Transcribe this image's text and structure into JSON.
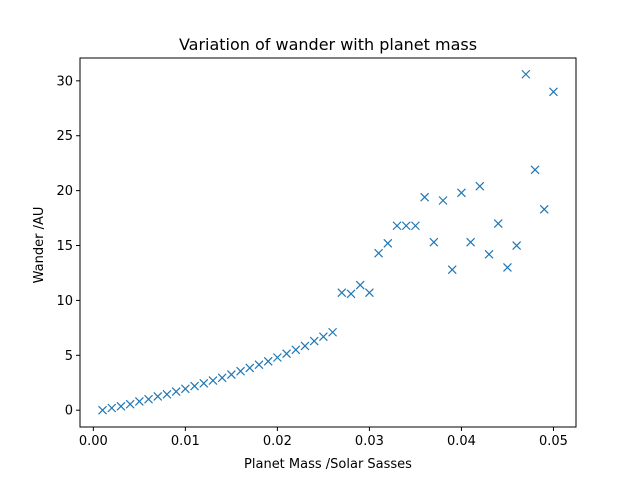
{
  "chart_data": {
    "type": "scatter",
    "title": "Variation of wander with planet mass",
    "xlabel": "Planet Mass /Solar Sasses",
    "ylabel": "Wander /AU",
    "xlim": [
      -0.00145,
      0.05245
    ],
    "ylim": [
      -1.53,
      32.08
    ],
    "xticks": [
      0.0,
      0.01,
      0.02,
      0.03,
      0.04,
      0.05
    ],
    "xtick_labels": [
      "0.00",
      "0.01",
      "0.02",
      "0.03",
      "0.04",
      "0.05"
    ],
    "yticks": [
      0,
      5,
      10,
      15,
      20,
      25,
      30
    ],
    "ytick_labels": [
      "0",
      "5",
      "10",
      "15",
      "20",
      "25",
      "30"
    ],
    "grid": false,
    "marker": "x",
    "color": "#1f77b4",
    "series": [
      {
        "x": [
          0.001,
          0.002,
          0.003,
          0.004,
          0.005,
          0.006,
          0.007,
          0.008,
          0.009,
          0.01,
          0.011,
          0.012,
          0.013,
          0.014,
          0.015,
          0.016,
          0.017,
          0.018,
          0.019,
          0.02,
          0.021,
          0.022,
          0.023,
          0.024,
          0.025,
          0.026,
          0.027,
          0.028,
          0.029,
          0.03,
          0.031,
          0.032,
          0.033,
          0.034,
          0.035,
          0.036,
          0.037,
          0.038,
          0.039,
          0.04,
          0.041,
          0.042,
          0.043,
          0.044,
          0.045,
          0.046,
          0.047,
          0.048,
          0.049,
          0.05
        ],
        "y": [
          0.0,
          0.2,
          0.35,
          0.55,
          0.8,
          1.0,
          1.25,
          1.45,
          1.7,
          1.95,
          2.2,
          2.45,
          2.7,
          2.95,
          3.25,
          3.55,
          3.85,
          4.15,
          4.45,
          4.8,
          5.15,
          5.5,
          5.85,
          6.3,
          6.7,
          7.1,
          10.7,
          10.6,
          11.4,
          10.7,
          14.3,
          15.2,
          16.8,
          16.8,
          16.8,
          19.4,
          15.3,
          19.1,
          12.8,
          19.8,
          15.3,
          20.4,
          14.2,
          17.0,
          13.0,
          15.0,
          30.6,
          21.9,
          18.3,
          29.0
        ]
      }
    ]
  }
}
